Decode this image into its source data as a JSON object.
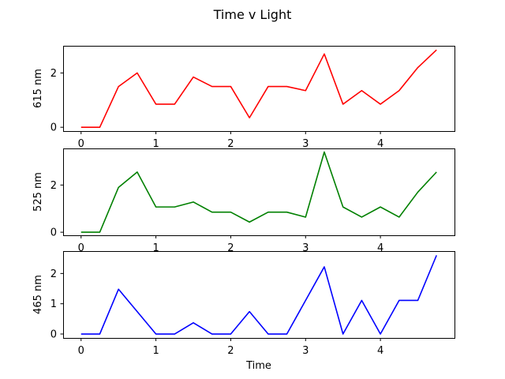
{
  "chart_data": [
    {
      "type": "line",
      "suptitle": "Time v Light",
      "ylabel": "615 nm",
      "xlabel": "",
      "color": "#ff0000",
      "x": [
        0,
        0.25,
        0.5,
        0.75,
        1.0,
        1.25,
        1.5,
        1.75,
        2.0,
        2.25,
        2.5,
        2.75,
        3.0,
        3.25,
        3.5,
        3.75,
        4.0,
        4.25,
        4.5,
        4.75
      ],
      "values": [
        0,
        0,
        1.5,
        2.0,
        0.85,
        0.85,
        1.85,
        1.5,
        1.5,
        0.35,
        1.5,
        1.5,
        1.35,
        2.7,
        0.85,
        1.35,
        0.85,
        1.35,
        2.2,
        2.85
      ],
      "xlim": [
        -0.24,
        4.99
      ],
      "ylim": [
        -0.14,
        3.0
      ],
      "xticks": [
        0,
        1,
        2,
        3,
        4
      ],
      "yticks": [
        0,
        2
      ],
      "grid": false,
      "show_xlabel": false
    },
    {
      "type": "line",
      "ylabel": "525 nm",
      "xlabel": "",
      "color": "#008000",
      "x": [
        0,
        0.25,
        0.5,
        0.75,
        1.0,
        1.25,
        1.5,
        1.75,
        2.0,
        2.25,
        2.5,
        2.75,
        3.0,
        3.25,
        3.5,
        3.75,
        4.0,
        4.25,
        4.5,
        4.75
      ],
      "values": [
        0,
        0,
        1.9,
        2.55,
        1.07,
        1.07,
        1.28,
        0.85,
        0.85,
        0.43,
        0.85,
        0.85,
        0.64,
        3.4,
        1.07,
        0.64,
        1.07,
        0.64,
        1.7,
        2.55
      ],
      "xlim": [
        -0.24,
        4.99
      ],
      "ylim": [
        -0.13,
        3.55
      ],
      "xticks": [
        0,
        1,
        2,
        3,
        4
      ],
      "yticks": [
        0,
        2
      ],
      "grid": false,
      "show_xlabel": false
    },
    {
      "type": "line",
      "ylabel": "465 nm",
      "xlabel": "Time",
      "color": "#0000ff",
      "x": [
        0,
        0.25,
        0.5,
        0.75,
        1.0,
        1.25,
        1.5,
        1.75,
        2.0,
        2.25,
        2.5,
        2.75,
        3.0,
        3.25,
        3.5,
        3.75,
        4.0,
        4.25,
        4.5,
        4.75
      ],
      "values": [
        0,
        0,
        1.48,
        0.74,
        0,
        0,
        0.37,
        0,
        0,
        0.74,
        0,
        0,
        1.11,
        2.22,
        0,
        1.11,
        0,
        1.11,
        1.11,
        2.6
      ],
      "xlim": [
        -0.24,
        4.99
      ],
      "ylim": [
        -0.13,
        2.74
      ],
      "xticks": [
        0,
        1,
        2,
        3,
        4
      ],
      "yticks": [
        0,
        1,
        2
      ],
      "grid": false,
      "show_xlabel": true
    }
  ]
}
